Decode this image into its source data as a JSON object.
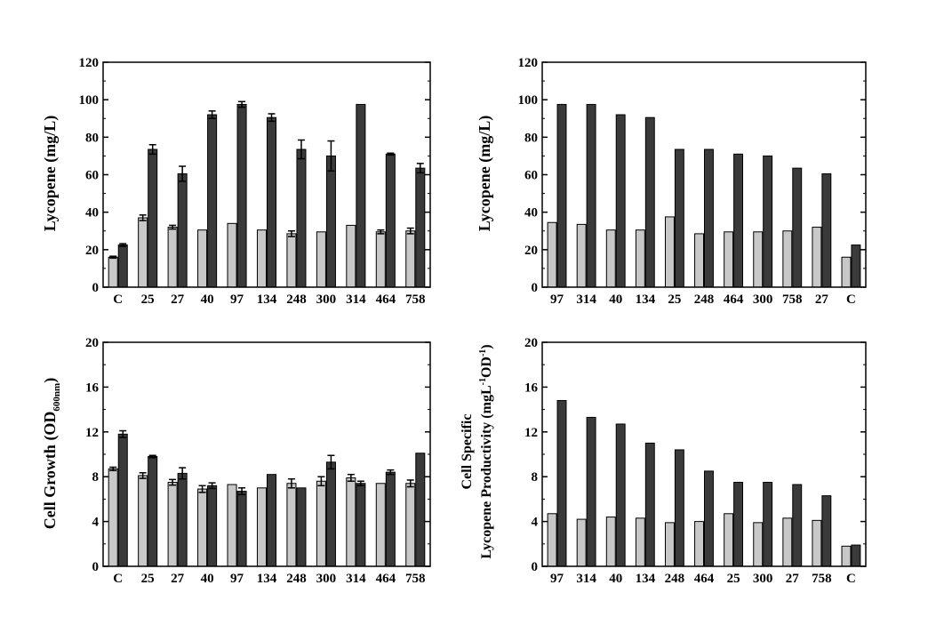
{
  "colors": {
    "light_bar": "#c8c8c8",
    "dark_bar": "#3a3a3a",
    "axis": "#000000",
    "background": "#ffffff"
  },
  "chart_data": [
    {
      "type": "bar",
      "panel": "top-left",
      "ylabel": "Lycopene (mg/L)",
      "ylim": [
        0,
        120
      ],
      "yticks": [
        "0",
        "20",
        "40",
        "60",
        "80",
        "100",
        "120"
      ],
      "categories": [
        "C",
        "25",
        "27",
        "40",
        "97",
        "134",
        "248",
        "300",
        "314",
        "464",
        "758"
      ],
      "series": [
        {
          "color": "#c8c8c8",
          "values": [
            16,
            37,
            32,
            30.5,
            34,
            30.5,
            28.5,
            29.5,
            33,
            29.5,
            30
          ],
          "errors": [
            0.5,
            1.5,
            1,
            0,
            0,
            0,
            1.5,
            0,
            0,
            1,
            1.5
          ]
        },
        {
          "color": "#3a3a3a",
          "values": [
            22.5,
            73.5,
            60.5,
            92,
            97.5,
            90.5,
            73.5,
            70,
            97.5,
            71,
            63.5
          ],
          "errors": [
            0.7,
            2.5,
            4,
            2,
            1.5,
            2,
            5,
            8,
            0,
            0.5,
            2.5
          ]
        }
      ],
      "grid": false
    },
    {
      "type": "bar",
      "panel": "top-right",
      "ylabel": "Lycopene (mg/L)",
      "ylim": [
        0,
        120
      ],
      "yticks": [
        "0",
        "20",
        "40",
        "60",
        "80",
        "100",
        "120"
      ],
      "categories": [
        "97",
        "314",
        "40",
        "134",
        "25",
        "248",
        "464",
        "300",
        "758",
        "27",
        "C"
      ],
      "series": [
        {
          "color": "#c8c8c8",
          "values": [
            34.5,
            33.5,
            30.5,
            30.5,
            37.5,
            28.5,
            29.5,
            29.5,
            30,
            32,
            16
          ]
        },
        {
          "color": "#3a3a3a",
          "values": [
            97.5,
            97.5,
            92,
            90.5,
            73.5,
            73.5,
            71,
            70,
            63.5,
            60.5,
            22.5
          ]
        }
      ],
      "grid": false
    },
    {
      "type": "bar",
      "panel": "bottom-left",
      "ylabel": "Cell Growth (OD",
      "ylabel_subscript": "600nm",
      "ylabel_close": ")",
      "ylim": [
        0,
        20
      ],
      "yticks": [
        "0",
        "4",
        "8",
        "12",
        "16",
        "20"
      ],
      "categories": [
        "C",
        "25",
        "27",
        "40",
        "97",
        "134",
        "248",
        "300",
        "314",
        "464",
        "758"
      ],
      "series": [
        {
          "color": "#c8c8c8",
          "values": [
            8.7,
            8.1,
            7.5,
            6.9,
            7.3,
            7.0,
            7.4,
            7.6,
            7.9,
            7.4,
            7.4
          ],
          "errors": [
            0.15,
            0.25,
            0.25,
            0.3,
            0,
            0,
            0.4,
            0.4,
            0.3,
            0,
            0.3
          ]
        },
        {
          "color": "#3a3a3a",
          "values": [
            11.8,
            9.8,
            8.3,
            7.2,
            6.7,
            8.2,
            7.0,
            9.3,
            7.4,
            8.4,
            10.1
          ],
          "errors": [
            0.3,
            0.1,
            0.5,
            0.25,
            0.3,
            0,
            0,
            0.6,
            0.2,
            0.2,
            0
          ]
        }
      ],
      "grid": false
    },
    {
      "type": "bar",
      "panel": "bottom-right",
      "ylabel_line1": "Cell Specific",
      "ylabel_line2": "Lycopene Productivity (mgL",
      "ylabel_sup1": "-1",
      "ylabel_mid": "OD",
      "ylabel_sup2": "-1",
      "ylabel_close": ")",
      "ylim": [
        0,
        20
      ],
      "yticks": [
        "0",
        "4",
        "8",
        "12",
        "16",
        "20"
      ],
      "categories": [
        "97",
        "314",
        "40",
        "134",
        "248",
        "464",
        "25",
        "300",
        "27",
        "758",
        "C"
      ],
      "series": [
        {
          "color": "#c8c8c8",
          "values": [
            4.7,
            4.2,
            4.4,
            4.3,
            3.9,
            4.0,
            4.7,
            3.9,
            4.3,
            4.1,
            1.8
          ]
        },
        {
          "color": "#3a3a3a",
          "values": [
            14.8,
            13.3,
            12.7,
            11.0,
            10.4,
            8.5,
            7.5,
            7.5,
            7.3,
            6.3,
            1.9
          ]
        }
      ],
      "grid": false
    }
  ]
}
